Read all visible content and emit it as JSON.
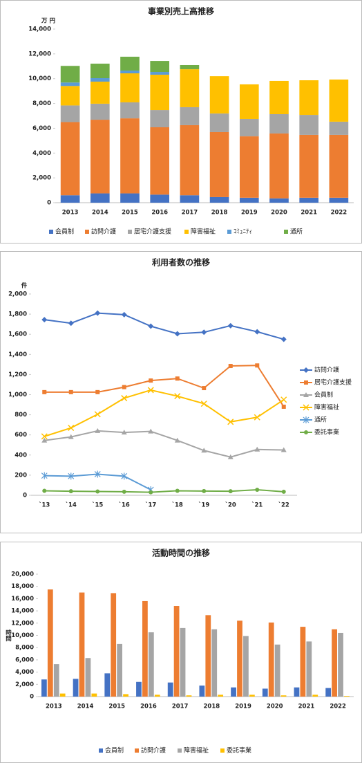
{
  "chart_data": [
    {
      "type": "stacked_bar",
      "title": "事業別売上高推移",
      "y_unit": "万 円",
      "legend": "bottom",
      "grid": false,
      "categories": [
        "2013",
        "2014",
        "2015",
        "2016",
        "2017",
        "2018",
        "2019",
        "2020",
        "2021",
        "2022"
      ],
      "ylim": [
        0,
        14000
      ],
      "yticks": [
        0,
        {
          "value": 2000,
          "label": "2,000"
        },
        {
          "value": 4000,
          "label": "4,000"
        },
        {
          "value": 6000,
          "label": "6,000"
        },
        {
          "value": 8000,
          "label": "8,000"
        },
        {
          "value": 10000,
          "label": "10,000"
        },
        {
          "value": 12000,
          "label": "12,000"
        },
        {
          "value": 14000,
          "label": "14,000"
        }
      ],
      "series": [
        {
          "name": "会員制",
          "color": "#4472c4",
          "values": [
            600,
            750,
            750,
            650,
            600,
            450,
            400,
            350,
            400,
            400
          ]
        },
        {
          "name": "訪問介護",
          "color": "#ed7d31",
          "values": [
            5900,
            5940,
            6050,
            5430,
            5650,
            5240,
            4950,
            5230,
            5070,
            5070
          ]
        },
        {
          "name": "居宅介護支援",
          "color": "#a5a5a5",
          "values": [
            1340,
            1290,
            1290,
            1390,
            1450,
            1500,
            1400,
            1560,
            1610,
            1060
          ]
        },
        {
          "name": "障害福祉",
          "color": "#ffc000",
          "values": [
            1570,
            1780,
            2340,
            2850,
            3060,
            3010,
            2790,
            2680,
            2790,
            3400
          ]
        },
        {
          "name": "ｺﾐｭﾆﾃｨ",
          "color": "#5b9bd5",
          "values": [
            280,
            280,
            220,
            220,
            null,
            null,
            null,
            null,
            null,
            null
          ]
        },
        {
          "name": "通所",
          "color": "#70ad47",
          "values": [
            1340,
            1170,
            1120,
            890,
            340,
            null,
            null,
            null,
            null,
            null
          ]
        }
      ]
    },
    {
      "type": "line",
      "title": "利用者数の推移",
      "y_unit": "件",
      "legend": "right",
      "grid": false,
      "categories": [
        "`13",
        "`14",
        "`15",
        "`16",
        "`17",
        "`18",
        "`19",
        "`20",
        "`21",
        "`22"
      ],
      "ylim": [
        0,
        2000
      ],
      "yticks": [
        0,
        200,
        400,
        600,
        800,
        {
          "value": 1000,
          "label": "1,000"
        },
        {
          "value": 1200,
          "label": "1,200"
        },
        {
          "value": 1400,
          "label": "1,400"
        },
        {
          "value": 1600,
          "label": "1,600"
        },
        {
          "value": 1800,
          "label": "1,800"
        },
        {
          "value": 2000,
          "label": "2,000"
        }
      ],
      "series": [
        {
          "name": "訪問介護",
          "color": "#4472c4",
          "marker": "diamond",
          "values": [
            1745,
            1710,
            1810,
            1795,
            1680,
            1605,
            1620,
            1685,
            1625,
            1550
          ]
        },
        {
          "name": "居宅介護支援",
          "color": "#ed7d31",
          "marker": "square",
          "values": [
            1025,
            1025,
            1025,
            1075,
            1140,
            1160,
            1065,
            1285,
            1290,
            880
          ]
        },
        {
          "name": "会員制",
          "color": "#a5a5a5",
          "marker": "triangle",
          "values": [
            545,
            580,
            640,
            625,
            635,
            545,
            445,
            380,
            455,
            450
          ]
        },
        {
          "name": "障害福祉",
          "color": "#ffc000",
          "marker": "x",
          "values": [
            585,
            670,
            805,
            965,
            1045,
            985,
            910,
            730,
            775,
            950
          ]
        },
        {
          "name": "通所",
          "color": "#5b9bd5",
          "marker": "star",
          "values": [
            195,
            190,
            210,
            190,
            55,
            null,
            null,
            null,
            null,
            null
          ]
        },
        {
          "name": "委託事業",
          "color": "#70ad47",
          "marker": "circle",
          "values": [
            45,
            40,
            38,
            35,
            30,
            45,
            42,
            40,
            55,
            35
          ]
        }
      ]
    },
    {
      "type": "grouped_bar",
      "title": "活動時間の推移",
      "y_label": "時間",
      "legend": "bottom",
      "grid": false,
      "categories": [
        "2013",
        "2014",
        "2015",
        "2016",
        "2017",
        "2018",
        "2019",
        "2020",
        "2021",
        "2022"
      ],
      "ylim": [
        0,
        20000
      ],
      "yticks": [
        0,
        {
          "value": 2000,
          "label": "2,000"
        },
        {
          "value": 4000,
          "label": "4,000"
        },
        {
          "value": 6000,
          "label": "6,000"
        },
        {
          "value": 8000,
          "label": "8,000"
        },
        {
          "value": 10000,
          "label": "10,000"
        },
        {
          "value": 12000,
          "label": "12,000"
        },
        {
          "value": 14000,
          "label": "14,000"
        },
        {
          "value": 16000,
          "label": "16,000"
        },
        {
          "value": 18000,
          "label": "18,000"
        },
        {
          "value": 20000,
          "label": "20,000"
        }
      ],
      "series": [
        {
          "name": "会員制",
          "color": "#4472c4",
          "values": [
            2800,
            2900,
            3800,
            2400,
            2300,
            1800,
            1500,
            1300,
            1500,
            1400
          ]
        },
        {
          "name": "訪問介護",
          "color": "#ed7d31",
          "values": [
            17500,
            17000,
            16900,
            15600,
            14800,
            13300,
            12400,
            12100,
            11400,
            11000
          ]
        },
        {
          "name": "障害福祉",
          "color": "#a5a5a5",
          "values": [
            5300,
            6300,
            8600,
            10500,
            11200,
            11000,
            9900,
            8500,
            9000,
            10400
          ]
        },
        {
          "name": "委託事業",
          "color": "#ffc000",
          "values": [
            500,
            500,
            400,
            300,
            200,
            300,
            300,
            200,
            300,
            100
          ]
        }
      ]
    }
  ]
}
